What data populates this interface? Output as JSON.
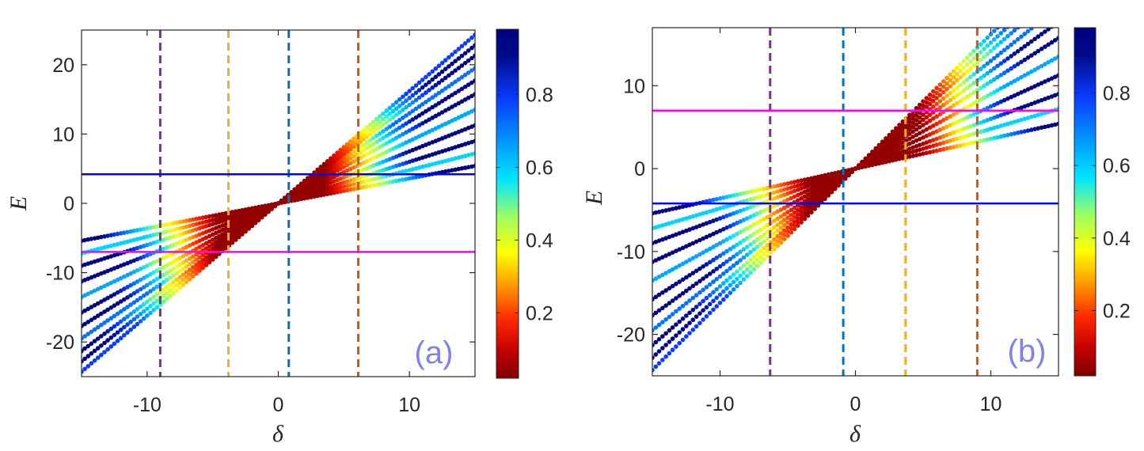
{
  "colormap": {
    "stops": [
      "#7f0000",
      "#c40000",
      "#ff2a00",
      "#ff9f00",
      "#ffff00",
      "#a0ff5f",
      "#00e5ff",
      "#0096ff",
      "#0a3cff",
      "#000c8c",
      "#00007f"
    ],
    "colorbar_ticks": [
      "0.2",
      "0.4",
      "0.6",
      "0.8"
    ],
    "colorbar_tick_values": [
      0.2,
      0.4,
      0.6,
      0.8
    ],
    "range": [
      0.02,
      0.98
    ]
  },
  "chart_data": [
    {
      "type": "scatter",
      "panel_label": "(a)",
      "xlabel": "δ",
      "ylabel": "E",
      "xlim": [
        -15,
        15
      ],
      "ylim": [
        -25,
        25
      ],
      "xticks": [
        -10,
        0,
        10
      ],
      "xtick_labels": [
        "-10",
        "0",
        "10"
      ],
      "yticks": [
        -20,
        -10,
        0,
        10,
        20
      ],
      "ytick_labels": [
        "-20",
        "-10",
        "0",
        "10",
        "20"
      ],
      "band_center": {
        "slope": 0.75,
        "intercept": 0
      },
      "branch_slopes": [
        0.36,
        0.48,
        0.6,
        0.75,
        0.9,
        1.05,
        1.18,
        1.3,
        1.42,
        1.52,
        1.62
      ],
      "low_brightness_x": [
        -4.8,
        3.6
      ],
      "vertical_dashed_lines": [
        {
          "x": -9,
          "color": "#7e2f8e"
        },
        {
          "x": -3.8,
          "color": "#edb120"
        },
        {
          "x": 0.8,
          "color": "#0072bd"
        },
        {
          "x": 6.1,
          "color": "#d95319"
        }
      ],
      "horizontal_lines": [
        {
          "y": 4.2,
          "color": "#0000ff"
        },
        {
          "y": -7,
          "color": "#ff00ff"
        }
      ]
    },
    {
      "type": "scatter",
      "panel_label": "(b)",
      "xlabel": "δ",
      "ylabel": "E",
      "xlim": [
        -15,
        15
      ],
      "ylim": [
        -25,
        17
      ],
      "xticks": [
        -10,
        0,
        10
      ],
      "xtick_labels": [
        "-10",
        "0",
        "10"
      ],
      "yticks": [
        -20,
        -10,
        0,
        10
      ],
      "ytick_labels": [
        "-20",
        "-10",
        "0",
        "10"
      ],
      "band_center": {
        "slope": 0.75,
        "intercept": 0
      },
      "branch_slopes": [
        0.36,
        0.48,
        0.6,
        0.75,
        0.9,
        1.05,
        1.18,
        1.3,
        1.42,
        1.52,
        1.62
      ],
      "low_brightness_x": [
        -3.6,
        4.8
      ],
      "vertical_dashed_lines": [
        {
          "x": -6.3,
          "color": "#7e2f8e"
        },
        {
          "x": -0.9,
          "color": "#0072bd"
        },
        {
          "x": 3.7,
          "color": "#edb120"
        },
        {
          "x": 9,
          "color": "#d95319"
        }
      ],
      "horizontal_lines": [
        {
          "y": 7,
          "color": "#ff00ff"
        },
        {
          "y": -4.2,
          "color": "#0000ff"
        }
      ]
    }
  ]
}
